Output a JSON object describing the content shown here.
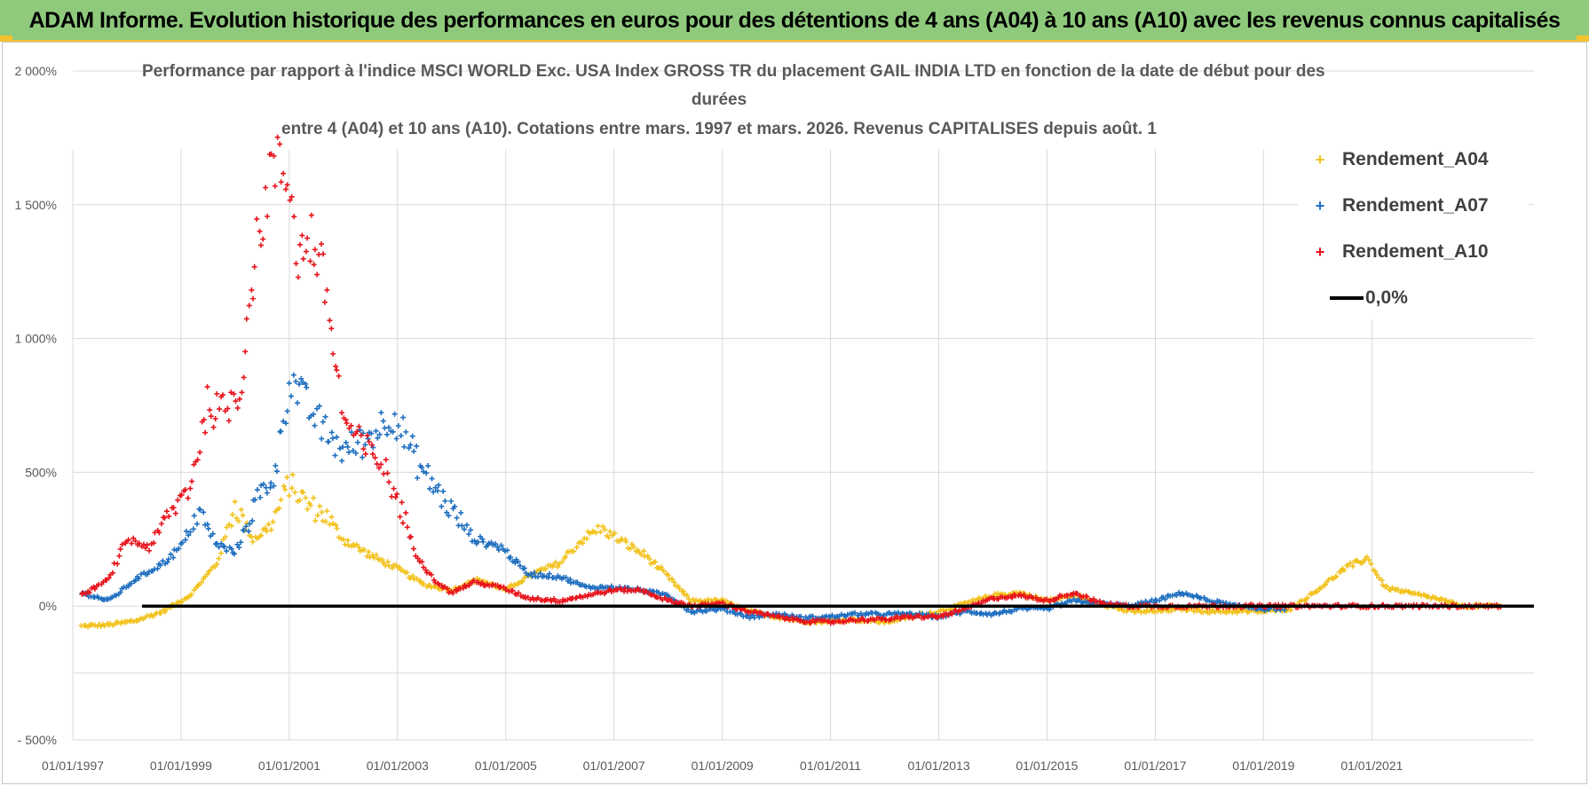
{
  "banner": {
    "title": "ADAM Informe. Evolution historique des performances en euros pour des détentions de 4 ans (A04) à 10 ans (A10) avec les revenus connus capitalisés"
  },
  "chart_title": {
    "line1": "Performance par rapport à l'indice MSCI WORLD Exc. USA Index GROSS TR  du placement GAIL INDIA LTD en fonction de la date de début pour des",
    "line2": "durées",
    "line3": "entre 4 (A04) et 10 ans (A10).  Cotations entre mars. 1997 et mars. 2026. Revenus CAPITALISES depuis août. 1"
  },
  "legend": {
    "items": [
      {
        "label": "Rendement_A04",
        "color": "#f2c21c",
        "marker": "+"
      },
      {
        "label": "Rendement_A07",
        "color": "#1f6fc0",
        "marker": "+"
      },
      {
        "label": "Rendement_A10",
        "color": "#e8141c",
        "marker": "+"
      },
      {
        "label": "0,0%",
        "color": "#000000",
        "marker": "line"
      }
    ]
  },
  "chart_data": {
    "type": "scatter",
    "title": "Performance par rapport à l'indice MSCI WORLD Exc. USA Index GROSS TR  du placement GAIL INDIA LTD en fonction de la date de début pour des durées entre 4 (A04) et 10 ans (A10).  Cotations entre mars. 1997 et mars. 2026. Revenus CAPITALISES depuis août. 1",
    "xlabel": "",
    "ylabel": "",
    "x_range": [
      "1997-01-01",
      "2023-12-31"
    ],
    "x_ticks": [
      "01/01/1997",
      "01/01/1999",
      "01/01/2001",
      "01/01/2003",
      "01/01/2005",
      "01/01/2007",
      "01/01/2009",
      "01/01/2011",
      "01/01/2013",
      "01/01/2015",
      "01/01/2017",
      "01/01/2019",
      "01/01/2021"
    ],
    "ylim": [
      -500,
      2000
    ],
    "y_ticks": [
      -500,
      0,
      500,
      1000,
      1500,
      2000
    ],
    "y_tick_labels": [
      "- 500%",
      "0%",
      "500%",
      "1 000%",
      "1 500%",
      "2 000%"
    ],
    "grid": true,
    "legend_position": "top-right",
    "reference_line": {
      "name": "0,0%",
      "y": 0,
      "color": "#000000"
    },
    "series": [
      {
        "name": "Rendement_A04",
        "color": "#f2c21c",
        "points": [
          [
            "1997-03-01",
            -75
          ],
          [
            "1997-09-01",
            -70
          ],
          [
            "1998-03-01",
            -55
          ],
          [
            "1998-09-01",
            -20
          ],
          [
            "1999-03-01",
            40
          ],
          [
            "1999-09-01",
            160
          ],
          [
            "2000-01-01",
            380
          ],
          [
            "2000-05-01",
            250
          ],
          [
            "2000-09-01",
            300
          ],
          [
            "2001-01-01",
            460
          ],
          [
            "2001-05-01",
            380
          ],
          [
            "2001-09-01",
            340
          ],
          [
            "2002-01-01",
            250
          ],
          [
            "2002-07-01",
            190
          ],
          [
            "2003-01-01",
            140
          ],
          [
            "2003-07-01",
            80
          ],
          [
            "2004-01-01",
            60
          ],
          [
            "2004-07-01",
            100
          ],
          [
            "2005-01-01",
            60
          ],
          [
            "2005-07-01",
            120
          ],
          [
            "2006-01-01",
            160
          ],
          [
            "2006-06-01",
            250
          ],
          [
            "2006-10-01",
            290
          ],
          [
            "2007-03-01",
            240
          ],
          [
            "2007-08-01",
            190
          ],
          [
            "2008-01-01",
            110
          ],
          [
            "2008-06-01",
            20
          ],
          [
            "2009-01-01",
            20
          ],
          [
            "2009-07-01",
            -20
          ],
          [
            "2010-01-01",
            -40
          ],
          [
            "2010-09-01",
            -60
          ],
          [
            "2011-06-01",
            -50
          ],
          [
            "2012-01-01",
            -60
          ],
          [
            "2012-07-01",
            -40
          ],
          [
            "2013-01-01",
            -20
          ],
          [
            "2013-07-01",
            10
          ],
          [
            "2014-01-01",
            40
          ],
          [
            "2014-07-01",
            50
          ],
          [
            "2015-01-01",
            20
          ],
          [
            "2015-07-01",
            40
          ],
          [
            "2016-01-01",
            10
          ],
          [
            "2016-07-01",
            -20
          ],
          [
            "2017-01-01",
            -20
          ],
          [
            "2017-07-01",
            -10
          ],
          [
            "2018-01-01",
            -20
          ],
          [
            "2018-07-01",
            -20
          ],
          [
            "2019-01-01",
            -20
          ],
          [
            "2019-07-01",
            -10
          ],
          [
            "2020-01-01",
            60
          ],
          [
            "2020-07-01",
            140
          ],
          [
            "2020-12-01",
            180
          ],
          [
            "2021-04-01",
            70
          ],
          [
            "2021-09-01",
            50
          ],
          [
            "2022-03-01",
            30
          ],
          [
            "2022-09-01",
            0
          ],
          [
            "2023-06-01",
            0
          ]
        ]
      },
      {
        "name": "Rendement_A07",
        "color": "#1f6fc0",
        "points": [
          [
            "1997-03-01",
            50
          ],
          [
            "1997-09-01",
            20
          ],
          [
            "1998-03-01",
            100
          ],
          [
            "1998-09-01",
            160
          ],
          [
            "1999-01-01",
            220
          ],
          [
            "1999-05-01",
            350
          ],
          [
            "1999-09-01",
            230
          ],
          [
            "2000-01-01",
            200
          ],
          [
            "2000-06-01",
            400
          ],
          [
            "2000-10-01",
            500
          ],
          [
            "2001-01-01",
            850
          ],
          [
            "2001-05-01",
            750
          ],
          [
            "2001-09-01",
            650
          ],
          [
            "2002-01-01",
            580
          ],
          [
            "2002-06-01",
            620
          ],
          [
            "2002-12-01",
            720
          ],
          [
            "2003-06-01",
            520
          ],
          [
            "2003-12-01",
            380
          ],
          [
            "2004-06-01",
            250
          ],
          [
            "2004-12-01",
            220
          ],
          [
            "2005-06-01",
            120
          ],
          [
            "2006-01-01",
            110
          ],
          [
            "2006-07-01",
            70
          ],
          [
            "2007-01-01",
            70
          ],
          [
            "2007-07-01",
            60
          ],
          [
            "2008-01-01",
            40
          ],
          [
            "2008-06-01",
            -20
          ],
          [
            "2009-01-01",
            -10
          ],
          [
            "2009-07-01",
            -40
          ],
          [
            "2010-01-01",
            -30
          ],
          [
            "2010-07-01",
            -45
          ],
          [
            "2011-01-01",
            -40
          ],
          [
            "2011-07-01",
            -30
          ],
          [
            "2012-01-01",
            -30
          ],
          [
            "2012-07-01",
            -30
          ],
          [
            "2013-01-01",
            -40
          ],
          [
            "2013-07-01",
            -20
          ],
          [
            "2014-01-01",
            -30
          ],
          [
            "2014-07-01",
            -10
          ],
          [
            "2015-01-01",
            -10
          ],
          [
            "2015-07-01",
            20
          ],
          [
            "2016-01-01",
            10
          ],
          [
            "2016-07-01",
            0
          ],
          [
            "2017-01-01",
            20
          ],
          [
            "2017-07-01",
            50
          ],
          [
            "2018-01-01",
            20
          ],
          [
            "2018-07-01",
            0
          ],
          [
            "2019-01-01",
            -10
          ],
          [
            "2019-06-01",
            -10
          ]
        ]
      },
      {
        "name": "Rendement_A10",
        "color": "#e8141c",
        "points": [
          [
            "1997-03-01",
            40
          ],
          [
            "1997-09-01",
            100
          ],
          [
            "1998-01-01",
            250
          ],
          [
            "1998-06-01",
            220
          ],
          [
            "1998-10-01",
            330
          ],
          [
            "1999-03-01",
            450
          ],
          [
            "1999-07-01",
            750
          ],
          [
            "1999-10-01",
            720
          ],
          [
            "2000-02-01",
            800
          ],
          [
            "2000-05-01",
            1250
          ],
          [
            "2000-09-01",
            1650
          ],
          [
            "2001-01-01",
            1600
          ],
          [
            "2001-03-01",
            1300
          ],
          [
            "2001-06-01",
            1380
          ],
          [
            "2001-09-01",
            1200
          ],
          [
            "2002-01-01",
            700
          ],
          [
            "2002-05-01",
            600
          ],
          [
            "2002-09-01",
            550
          ],
          [
            "2003-01-01",
            400
          ],
          [
            "2003-05-01",
            200
          ],
          [
            "2003-09-01",
            100
          ],
          [
            "2004-01-01",
            50
          ],
          [
            "2004-06-01",
            90
          ],
          [
            "2004-12-01",
            70
          ],
          [
            "2005-06-01",
            30
          ],
          [
            "2006-01-01",
            20
          ],
          [
            "2006-07-01",
            40
          ],
          [
            "2007-01-01",
            60
          ],
          [
            "2007-07-01",
            60
          ],
          [
            "2008-01-01",
            20
          ],
          [
            "2008-07-01",
            0
          ],
          [
            "2009-01-01",
            10
          ],
          [
            "2009-07-01",
            -20
          ],
          [
            "2010-01-01",
            -40
          ],
          [
            "2010-07-01",
            -55
          ],
          [
            "2011-01-01",
            -60
          ],
          [
            "2011-07-01",
            -50
          ],
          [
            "2012-01-01",
            -50
          ],
          [
            "2012-07-01",
            -40
          ],
          [
            "2013-01-01",
            -40
          ],
          [
            "2013-07-01",
            -10
          ],
          [
            "2014-01-01",
            30
          ],
          [
            "2014-07-01",
            40
          ],
          [
            "2015-01-01",
            20
          ],
          [
            "2015-07-01",
            50
          ],
          [
            "2016-01-01",
            10
          ],
          [
            "2016-07-01",
            0
          ],
          [
            "2017-01-01",
            0
          ],
          [
            "2018-01-01",
            0
          ],
          [
            "2019-01-01",
            0
          ],
          [
            "2020-01-01",
            0
          ],
          [
            "2021-01-01",
            0
          ],
          [
            "2022-01-01",
            0
          ],
          [
            "2023-06-01",
            0
          ]
        ]
      }
    ]
  }
}
